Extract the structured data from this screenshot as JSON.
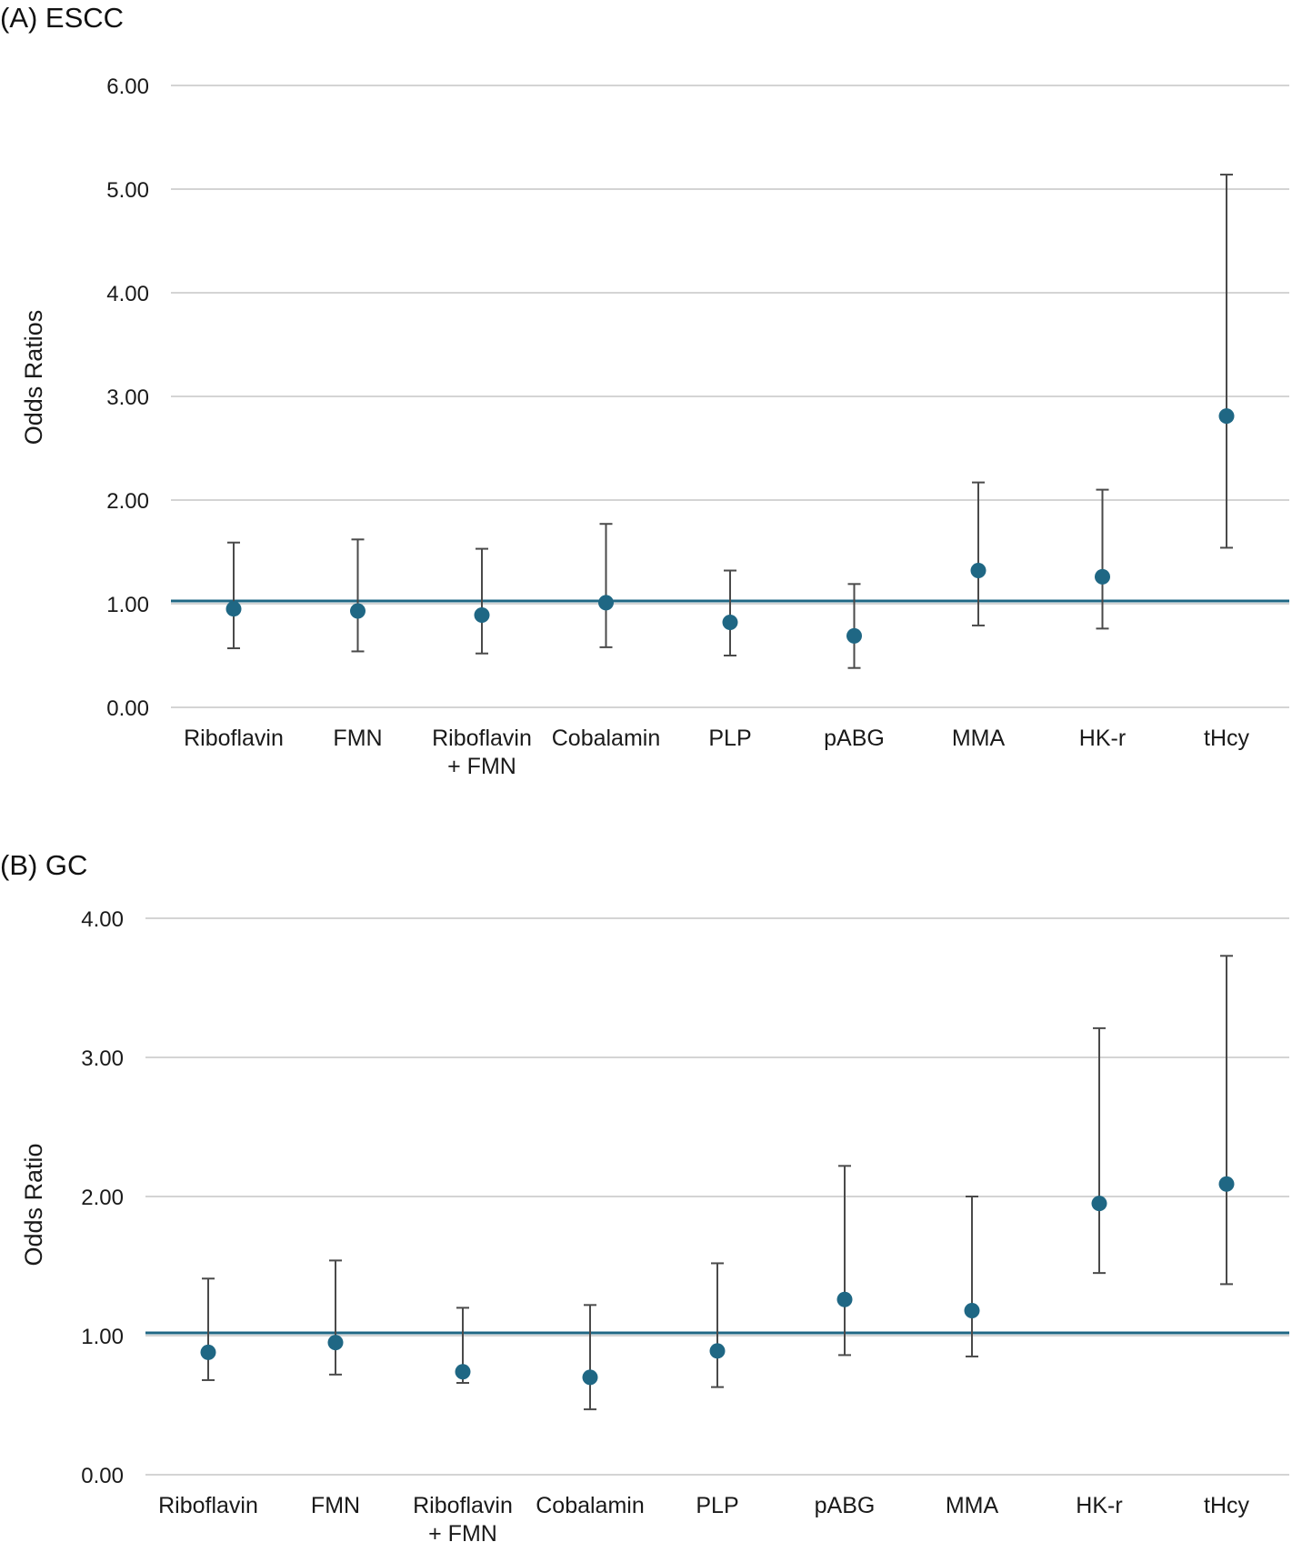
{
  "chart_data": [
    {
      "type": "scatter",
      "title": "(A) ESCC",
      "ylabel": "Odds Ratios",
      "xlabel": "",
      "ylim": [
        0,
        6
      ],
      "yticks": [
        "0.00",
        "1.00",
        "2.00",
        "3.00",
        "4.00",
        "5.00",
        "6.00"
      ],
      "grid": true,
      "reference_line": 1.0,
      "colors": {
        "point": "#1f6784",
        "reference": "#1f6784",
        "error_bar": "#4a4a4a"
      },
      "categories": [
        [
          "Riboflavin"
        ],
        [
          "FMN"
        ],
        [
          "Riboflavin",
          "+ FMN"
        ],
        [
          "Cobalamin"
        ],
        [
          "PLP"
        ],
        [
          "pABG"
        ],
        [
          "MMA"
        ],
        [
          "HK-r"
        ],
        [
          "tHcy"
        ]
      ],
      "values": [
        0.95,
        0.93,
        0.89,
        1.01,
        0.82,
        0.69,
        1.32,
        1.26,
        2.81
      ],
      "lower": [
        0.57,
        0.54,
        0.52,
        0.58,
        0.5,
        0.38,
        0.79,
        0.76,
        1.54
      ],
      "upper": [
        1.59,
        1.62,
        1.53,
        1.77,
        1.32,
        1.19,
        2.17,
        2.1,
        5.14
      ]
    },
    {
      "type": "scatter",
      "title": "(B) GC",
      "ylabel": "Odds Ratio",
      "xlabel": "",
      "ylim": [
        0,
        4
      ],
      "yticks": [
        "0.00",
        "1.00",
        "2.00",
        "3.00",
        "4.00"
      ],
      "grid": true,
      "reference_line": 1.0,
      "colors": {
        "point": "#1f6784",
        "reference": "#1f6784",
        "error_bar": "#4a4a4a"
      },
      "categories": [
        [
          "Riboflavin"
        ],
        [
          "FMN"
        ],
        [
          "Riboflavin",
          "+ FMN"
        ],
        [
          "Cobalamin"
        ],
        [
          "PLP"
        ],
        [
          "pABG"
        ],
        [
          "MMA"
        ],
        [
          "HK-r"
        ],
        [
          "tHcy"
        ]
      ],
      "values": [
        0.88,
        0.95,
        0.74,
        0.7,
        0.89,
        1.26,
        1.18,
        1.95,
        2.09
      ],
      "lower": [
        0.68,
        0.72,
        0.66,
        0.47,
        0.63,
        0.86,
        0.85,
        1.45,
        1.37
      ],
      "upper": [
        1.41,
        1.54,
        1.2,
        1.22,
        1.52,
        2.22,
        2.0,
        3.21,
        3.73
      ]
    }
  ]
}
